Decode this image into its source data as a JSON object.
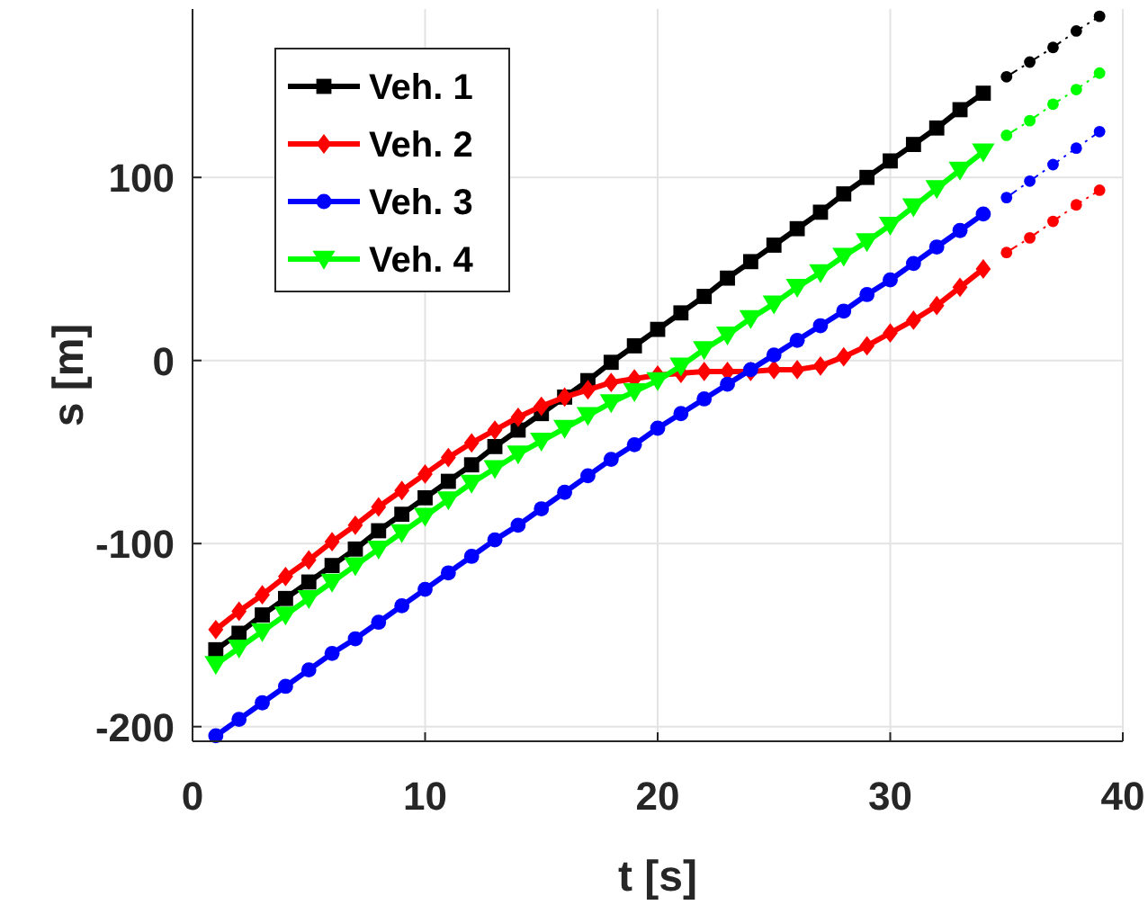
{
  "chart_data": {
    "type": "line",
    "xlabel": "t [s]",
    "ylabel": "s [m]",
    "xlim": [
      0,
      40
    ],
    "ylim": [
      -208,
      192
    ],
    "xticks": [
      0,
      10,
      20,
      30,
      40
    ],
    "yticks": [
      -200,
      -100,
      0,
      100
    ],
    "grid": true,
    "legend": "top left",
    "series": [
      {
        "name": "Veh. 1",
        "color": "#000000",
        "marker": "square",
        "line_style": "solid",
        "x": [
          1,
          2,
          3,
          4,
          5,
          6,
          7,
          8,
          9,
          10,
          11,
          12,
          13,
          14,
          15,
          16,
          17,
          18,
          19,
          20,
          21,
          22,
          23,
          24,
          25,
          26,
          27,
          28,
          29,
          30,
          31,
          32,
          33,
          34
        ],
        "values": [
          -158,
          -149,
          -139,
          -130,
          -121,
          -112,
          -103,
          -93,
          -84,
          -75,
          -66,
          -57,
          -47,
          -38,
          -29,
          -20,
          -11,
          -1,
          8,
          17,
          26,
          35,
          45,
          54,
          63,
          72,
          81,
          91,
          100,
          109,
          118,
          127,
          137,
          146
        ]
      },
      {
        "name": "Veh. 2",
        "color": "#ff0000",
        "marker": "diamond",
        "line_style": "solid",
        "x": [
          1,
          2,
          3,
          4,
          5,
          6,
          7,
          8,
          9,
          10,
          11,
          12,
          13,
          14,
          15,
          16,
          17,
          18,
          19,
          20,
          21,
          22,
          23,
          24,
          25,
          26,
          27,
          28,
          29,
          30,
          31,
          32,
          33,
          34
        ],
        "values": [
          -147,
          -137,
          -128,
          -118,
          -109,
          -99,
          -90,
          -80,
          -71,
          -62,
          -53,
          -45,
          -38,
          -31,
          -25,
          -20,
          -16,
          -12,
          -10,
          -8,
          -7,
          -6,
          -6,
          -6,
          -5,
          -5,
          -3,
          2,
          8,
          15,
          22,
          30,
          40,
          50
        ]
      },
      {
        "name": "Veh. 3",
        "color": "#0000ff",
        "marker": "circle",
        "line_style": "solid",
        "x": [
          1,
          2,
          3,
          4,
          5,
          6,
          7,
          8,
          9,
          10,
          11,
          12,
          13,
          14,
          15,
          16,
          17,
          18,
          19,
          20,
          21,
          22,
          23,
          24,
          25,
          26,
          27,
          28,
          29,
          30,
          31,
          32,
          33,
          34
        ],
        "values": [
          -205,
          -196,
          -187,
          -178,
          -169,
          -160,
          -152,
          -143,
          -134,
          -125,
          -116,
          -107,
          -98,
          -90,
          -81,
          -72,
          -63,
          -54,
          -46,
          -37,
          -29,
          -21,
          -13,
          -5,
          3,
          11,
          19,
          27,
          36,
          44,
          53,
          62,
          71,
          80
        ]
      },
      {
        "name": "Veh. 4",
        "color": "#00ff00",
        "marker": "triangle",
        "line_style": "solid",
        "x": [
          1,
          2,
          3,
          4,
          5,
          6,
          7,
          8,
          9,
          10,
          11,
          12,
          13,
          14,
          15,
          16,
          17,
          18,
          19,
          20,
          21,
          22,
          23,
          24,
          25,
          26,
          27,
          28,
          29,
          30,
          31,
          32,
          33,
          34
        ],
        "values": [
          -166,
          -157,
          -148,
          -139,
          -130,
          -121,
          -112,
          -103,
          -94,
          -85,
          -76,
          -67,
          -59,
          -51,
          -44,
          -37,
          -30,
          -23,
          -17,
          -11,
          -3,
          6,
          14,
          23,
          31,
          40,
          48,
          57,
          65,
          74,
          84,
          94,
          104,
          114
        ]
      },
      {
        "color": "#000000",
        "marker": "circle",
        "line_style": "dashed",
        "x": [
          35,
          36,
          37,
          38,
          39
        ],
        "values": [
          155,
          163,
          171,
          180,
          188
        ]
      },
      {
        "color": "#ff0000",
        "marker": "circle",
        "line_style": "dashed",
        "x": [
          35,
          36,
          37,
          38,
          39
        ],
        "values": [
          59,
          67,
          76,
          85,
          93
        ]
      },
      {
        "color": "#0000ff",
        "marker": "circle",
        "line_style": "dashed",
        "x": [
          35,
          36,
          37,
          38,
          39
        ],
        "values": [
          89,
          98,
          107,
          116,
          125
        ]
      },
      {
        "color": "#00ff00",
        "marker": "circle",
        "line_style": "dashed",
        "x": [
          35,
          36,
          37,
          38,
          39
        ],
        "values": [
          123,
          131,
          140,
          148,
          157
        ]
      }
    ]
  }
}
